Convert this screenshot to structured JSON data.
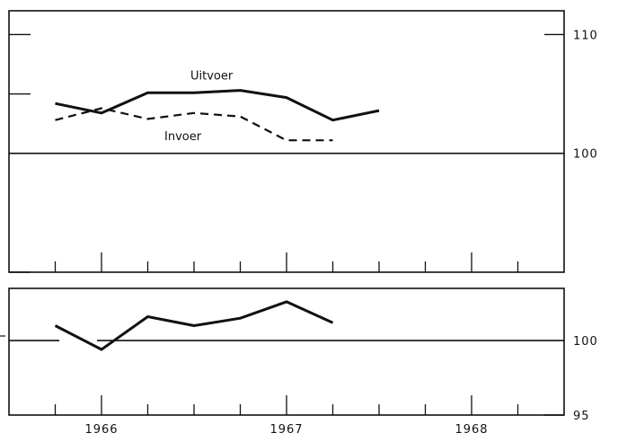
{
  "chart_data": [
    {
      "type": "line",
      "title": "",
      "xlabel": "",
      "ylabel": "",
      "x": [
        1965.75,
        1966.0,
        1966.25,
        1966.5,
        1966.75,
        1967.0,
        1967.25,
        1967.5
      ],
      "ylim": [
        90,
        112
      ],
      "y_ticks": [
        110,
        100
      ],
      "y_tick_labels": [
        "110",
        "100"
      ],
      "baseline": 100,
      "series": [
        {
          "name": "Uitvoer",
          "line": "solid",
          "values": [
            104.2,
            103.4,
            105.1,
            105.1,
            105.3,
            104.7,
            102.8,
            103.6
          ]
        },
        {
          "name": "Invoer",
          "line": "dashed",
          "values": [
            102.8,
            103.8,
            102.9,
            103.4,
            103.1,
            101.1,
            101.1,
            null
          ]
        }
      ]
    },
    {
      "type": "line",
      "title": "",
      "xlabel": "",
      "ylabel": "",
      "x": [
        1965.75,
        1966.0,
        1966.25,
        1966.5,
        1966.75,
        1967.0,
        1967.25
      ],
      "ylim": [
        95,
        103.5
      ],
      "y_ticks": [
        100,
        95
      ],
      "y_tick_labels": [
        "100",
        "95"
      ],
      "baseline": 100,
      "series": [
        {
          "line": "solid",
          "values": [
            101.0,
            99.4,
            101.6,
            101.0,
            101.5,
            102.6,
            101.2
          ]
        }
      ],
      "x_tick_labels": [
        "1966",
        "1967",
        "1968"
      ]
    }
  ]
}
